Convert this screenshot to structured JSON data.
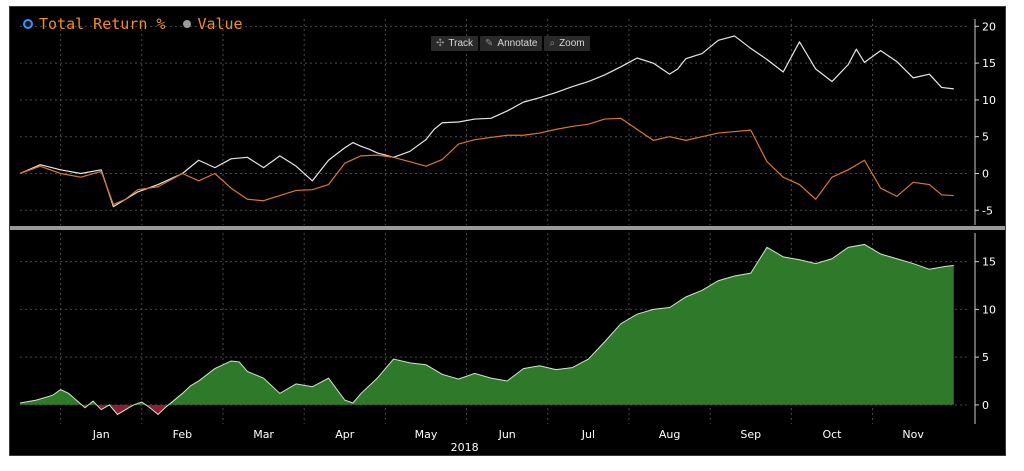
{
  "legend": {
    "items": [
      {
        "label": "Total Return %",
        "icon": "radio-selected-icon"
      },
      {
        "label": "Value",
        "icon": "gray-dot-icon"
      }
    ]
  },
  "toolbar": {
    "track": {
      "label": "Track",
      "icon": "crosshair-icon"
    },
    "annotate": {
      "label": "Annotate",
      "icon": "pencil-icon"
    },
    "zoom": {
      "label": "Zoom",
      "icon": "magnifier-icon"
    }
  },
  "colors": {
    "background": "#000000",
    "white_line": "#e6e6e6",
    "orange_line": "#d9782b",
    "area_positive": "#2f7a2a",
    "area_negative": "#8c1f35",
    "area_edge": "#cfe8c8",
    "grid": "#4a4a4a",
    "divider": "#9a9a9a",
    "axis_text": "#ffffff"
  },
  "chart_data": [
    {
      "type": "line",
      "panel": "top",
      "ylim": [
        -7,
        21
      ],
      "yticks": [
        20,
        15,
        10,
        5,
        0,
        -5
      ],
      "grid": true,
      "series": [
        {
          "color": "white",
          "x": [
            0,
            0.25,
            0.5,
            0.75,
            1,
            1.15,
            1.3,
            1.45,
            1.7,
            2,
            2.2,
            2.4,
            2.6,
            2.8,
            3,
            3.2,
            3.4,
            3.6,
            3.8,
            4,
            4.1,
            4.2,
            4.3,
            4.4,
            4.6,
            4.8,
            5,
            5.1,
            5.2,
            5.4,
            5.6,
            5.8,
            6,
            6.2,
            6.4,
            6.6,
            6.8,
            7,
            7.2,
            7.4,
            7.6,
            7.8,
            8,
            8.1,
            8.2,
            8.4,
            8.6,
            8.8,
            9,
            9.2,
            9.4,
            9.6,
            9.8,
            10,
            10.2,
            10.3,
            10.4,
            10.6,
            10.8,
            11,
            11.2,
            11.35,
            11.5
          ],
          "values": [
            0,
            1.2,
            0.5,
            0,
            0.5,
            -4.5,
            -3.5,
            -2.5,
            -1.5,
            0,
            1.8,
            0.8,
            2,
            2.2,
            0.8,
            2.4,
            1,
            -1,
            1.8,
            3.5,
            4.2,
            3.7,
            3.3,
            2.8,
            2.2,
            3,
            4.6,
            6,
            6.9,
            7,
            7.4,
            7.5,
            8.5,
            9.7,
            10.3,
            11,
            11.8,
            12.5,
            13.4,
            14.5,
            15.7,
            15,
            13.5,
            14.2,
            15.6,
            16.3,
            18.1,
            18.7,
            17,
            15.5,
            13.8,
            17.9,
            14.2,
            12.5,
            14.8,
            16.9,
            15.1,
            16.7,
            15.2,
            13,
            13.5,
            11.7,
            11.5
          ]
        },
        {
          "color": "orange",
          "x": [
            0,
            0.25,
            0.5,
            0.75,
            1,
            1.15,
            1.3,
            1.45,
            1.7,
            2,
            2.2,
            2.4,
            2.6,
            2.8,
            3,
            3.2,
            3.4,
            3.6,
            3.8,
            4,
            4.2,
            4.4,
            4.6,
            4.8,
            5,
            5.2,
            5.4,
            5.6,
            5.8,
            6,
            6.2,
            6.4,
            6.6,
            6.8,
            7,
            7.2,
            7.4,
            7.6,
            7.8,
            8,
            8.2,
            8.4,
            8.6,
            8.8,
            9,
            9.2,
            9.4,
            9.6,
            9.8,
            10,
            10.2,
            10.4,
            10.6,
            10.8,
            11,
            11.2,
            11.35,
            11.5
          ],
          "values": [
            0,
            1,
            0,
            -0.5,
            0.3,
            -4.2,
            -3.5,
            -2.2,
            -1.8,
            0,
            -1,
            0,
            -2,
            -3.5,
            -3.7,
            -3,
            -2.3,
            -2.2,
            -1.5,
            1.4,
            2.4,
            2.5,
            2.2,
            1.6,
            1,
            1.9,
            4,
            4.6,
            4.9,
            5.2,
            5.2,
            5.5,
            6,
            6.4,
            6.7,
            7.4,
            7.5,
            6,
            4.5,
            5,
            4.5,
            5,
            5.5,
            5.7,
            5.9,
            1.6,
            -0.5,
            -1.5,
            -3.5,
            -0.5,
            0.5,
            1.8,
            -2,
            -3.1,
            -1.2,
            -1.5,
            -2.9,
            -3
          ]
        }
      ]
    },
    {
      "type": "area",
      "panel": "bottom",
      "xlabel": "2018",
      "ylim": [
        -2,
        18
      ],
      "yticks": [
        15,
        10,
        5,
        0
      ],
      "grid": true,
      "x": [
        0,
        0.2,
        0.4,
        0.5,
        0.6,
        0.8,
        0.9,
        1,
        1.1,
        1.2,
        1.3,
        1.4,
        1.5,
        1.6,
        1.7,
        1.8,
        2,
        2.1,
        2.2,
        2.4,
        2.6,
        2.7,
        2.8,
        3,
        3.2,
        3.4,
        3.6,
        3.8,
        4,
        4.1,
        4.2,
        4.4,
        4.6,
        4.8,
        5,
        5.2,
        5.4,
        5.6,
        5.8,
        6,
        6.2,
        6.4,
        6.6,
        6.8,
        7,
        7.2,
        7.4,
        7.6,
        7.8,
        8,
        8.2,
        8.4,
        8.6,
        8.8,
        9,
        9.2,
        9.4,
        9.6,
        9.8,
        10,
        10.2,
        10.4,
        10.6,
        10.8,
        11,
        11.2,
        11.4,
        11.5
      ],
      "values": [
        0.2,
        0.5,
        1,
        1.6,
        1.2,
        -0.3,
        0.4,
        -0.5,
        0,
        -1,
        -0.5,
        0,
        0.3,
        -0.3,
        -1,
        -0.2,
        1.2,
        2,
        2.5,
        3.8,
        4.6,
        4.5,
        3.5,
        2.8,
        1.2,
        2.2,
        1.9,
        2.8,
        0.5,
        0.2,
        1.2,
        2.8,
        4.8,
        4.4,
        4.2,
        3.2,
        2.7,
        3.3,
        2.8,
        2.5,
        3.8,
        4.1,
        3.7,
        3.9,
        4.8,
        6.6,
        8.5,
        9.5,
        10,
        10.2,
        11.3,
        12,
        13,
        13.5,
        13.8,
        16.5,
        15.5,
        15.2,
        14.8,
        15.3,
        16.5,
        16.8,
        15.8,
        15.3,
        14.8,
        14.2,
        14.5,
        14.6
      ]
    }
  ],
  "xaxis": {
    "months": [
      "Jan",
      "Feb",
      "Mar",
      "Apr",
      "May",
      "Jun",
      "Jul",
      "Aug",
      "Sep",
      "Oct",
      "Nov"
    ],
    "year": "2018"
  }
}
